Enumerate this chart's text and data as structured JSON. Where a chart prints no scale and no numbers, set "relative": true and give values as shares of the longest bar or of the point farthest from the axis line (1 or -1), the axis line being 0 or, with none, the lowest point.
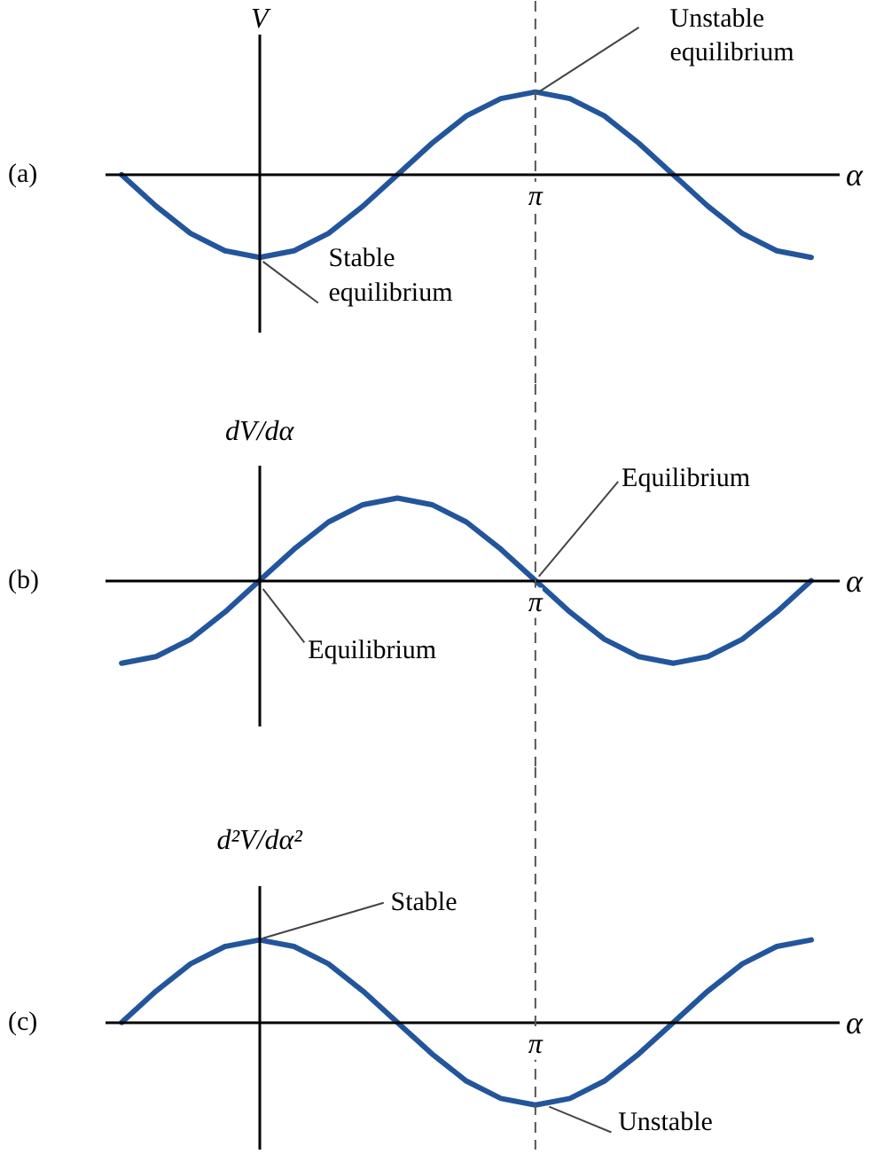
{
  "chart_data": [
    {
      "type": "line",
      "title": "(a)",
      "xlabel": "α",
      "ylabel": "V",
      "relative": true,
      "color": "#22559c",
      "categories": [
        null,
        null,
        null,
        null,
        null,
        null,
        null,
        null,
        null,
        null,
        null,
        null,
        null,
        null,
        null,
        null,
        null,
        null,
        null,
        null,
        null
      ],
      "values": [
        0,
        -0.38,
        -0.71,
        -0.92,
        -1,
        -0.92,
        -0.71,
        -0.38,
        0,
        0.38,
        0.71,
        0.92,
        1,
        0.92,
        0.71,
        0.38,
        0,
        -0.38,
        -0.71,
        -0.92,
        -1
      ],
      "annotations": [
        "Unstable equilibrium",
        "Stable equilibrium",
        "π"
      ]
    },
    {
      "type": "line",
      "title": "(b)",
      "xlabel": "α",
      "ylabel": "dV/dα",
      "relative": true,
      "color": "#22559c",
      "categories": [
        null,
        null,
        null,
        null,
        null,
        null,
        null,
        null,
        null,
        null,
        null,
        null,
        null,
        null,
        null,
        null,
        null,
        null,
        null,
        null,
        null
      ],
      "values": [
        -1,
        -0.92,
        -0.71,
        -0.38,
        0,
        0.38,
        0.71,
        0.92,
        1,
        0.92,
        0.71,
        0.38,
        0,
        -0.38,
        -0.71,
        -0.92,
        -1,
        -0.92,
        -0.71,
        -0.38,
        0
      ],
      "annotations": [
        "Equilibrium",
        "Equilibrium",
        "π"
      ]
    },
    {
      "type": "line",
      "title": "(c)",
      "xlabel": "α",
      "ylabel": "d²V/dα²",
      "relative": true,
      "color": "#22559c",
      "categories": [
        null,
        null,
        null,
        null,
        null,
        null,
        null,
        null,
        null,
        null,
        null,
        null,
        null,
        null,
        null,
        null,
        null,
        null,
        null,
        null,
        null
      ],
      "values": [
        0,
        0.38,
        0.71,
        0.92,
        1,
        0.92,
        0.71,
        0.38,
        0,
        -0.38,
        -0.71,
        -0.92,
        -1,
        -0.92,
        -0.71,
        -0.38,
        0,
        0.38,
        0.71,
        0.92,
        1
      ],
      "annotations": [
        "Stable",
        "Unstable",
        "π"
      ]
    }
  ]
}
